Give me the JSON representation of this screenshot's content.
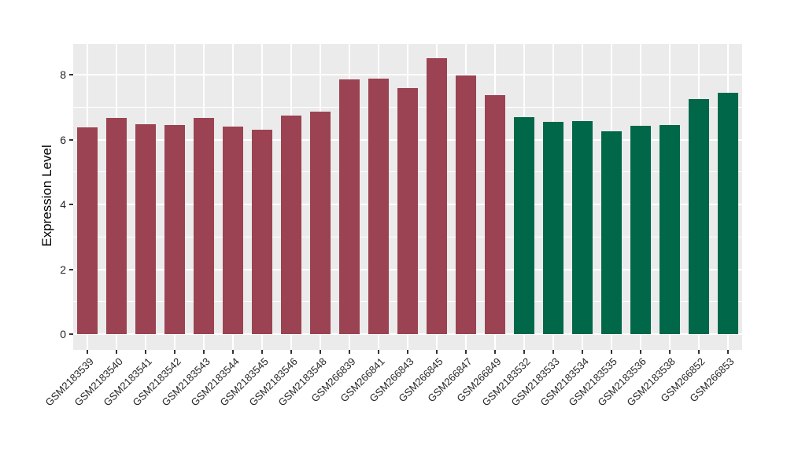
{
  "chart_data": {
    "type": "bar",
    "title": "",
    "ylabel": "Expression Level",
    "xlabel": "",
    "ylim": [
      0,
      8.95
    ],
    "yticks": [
      0,
      2,
      4,
      6,
      8
    ],
    "yticks_minor": [
      1,
      3,
      5,
      7
    ],
    "grid": "on",
    "legend": "none",
    "panel_background": "#EBEBEB",
    "gridline_color": "#FFFFFF",
    "tick_mark_color": "#333333",
    "group_colors": {
      "group1": "#9B4352",
      "group2": "#006849"
    },
    "categories": [
      "GSM2183539",
      "GSM2183540",
      "GSM2183541",
      "GSM2183542",
      "GSM2183543",
      "GSM2183544",
      "GSM2183545",
      "GSM2183546",
      "GSM2183548",
      "GSM266839",
      "GSM266841",
      "GSM266843",
      "GSM266845",
      "GSM266847",
      "GSM266849",
      "GSM2183532",
      "GSM2183533",
      "GSM2183534",
      "GSM2183535",
      "GSM2183536",
      "GSM2183538",
      "GSM266852",
      "GSM266853"
    ],
    "bars": [
      {
        "label": "GSM2183539",
        "value": 6.38,
        "group": "group1"
      },
      {
        "label": "GSM2183540",
        "value": 6.66,
        "group": "group1"
      },
      {
        "label": "GSM2183541",
        "value": 6.47,
        "group": "group1"
      },
      {
        "label": "GSM2183542",
        "value": 6.45,
        "group": "group1"
      },
      {
        "label": "GSM2183543",
        "value": 6.67,
        "group": "group1"
      },
      {
        "label": "GSM2183544",
        "value": 6.41,
        "group": "group1"
      },
      {
        "label": "GSM2183545",
        "value": 6.31,
        "group": "group1"
      },
      {
        "label": "GSM2183546",
        "value": 6.75,
        "group": "group1"
      },
      {
        "label": "GSM2183548",
        "value": 6.86,
        "group": "group1"
      },
      {
        "label": "GSM266839",
        "value": 7.85,
        "group": "group1"
      },
      {
        "label": "GSM266841",
        "value": 7.88,
        "group": "group1"
      },
      {
        "label": "GSM266843",
        "value": 7.6,
        "group": "group1"
      },
      {
        "label": "GSM266845",
        "value": 8.5,
        "group": "group1"
      },
      {
        "label": "GSM266847",
        "value": 7.97,
        "group": "group1"
      },
      {
        "label": "GSM266849",
        "value": 7.36,
        "group": "group1"
      },
      {
        "label": "GSM2183532",
        "value": 6.68,
        "group": "group2"
      },
      {
        "label": "GSM2183533",
        "value": 6.54,
        "group": "group2"
      },
      {
        "label": "GSM2183534",
        "value": 6.57,
        "group": "group2"
      },
      {
        "label": "GSM2183535",
        "value": 6.25,
        "group": "group2"
      },
      {
        "label": "GSM2183536",
        "value": 6.42,
        "group": "group2"
      },
      {
        "label": "GSM2183538",
        "value": 6.44,
        "group": "group2"
      },
      {
        "label": "GSM266852",
        "value": 7.26,
        "group": "group2"
      },
      {
        "label": "GSM266853",
        "value": 7.45,
        "group": "group2"
      }
    ]
  }
}
